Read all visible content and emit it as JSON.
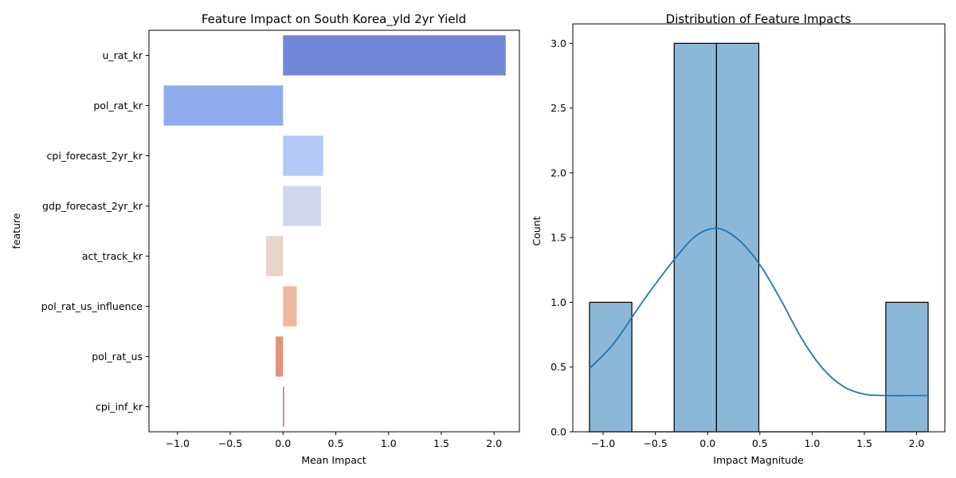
{
  "chart_data": [
    {
      "type": "bar",
      "orientation": "horizontal",
      "title": "Feature Impact on South Korea_yld 2yr Yield",
      "xlabel": "Mean Impact",
      "ylabel": "feature",
      "xlim": [
        -1.27,
        2.24
      ],
      "xticks": [
        -1.0,
        -0.5,
        0.0,
        0.5,
        1.0,
        1.5,
        2.0
      ],
      "xtick_labels": [
        "−1.0",
        "−0.5",
        "0.0",
        "0.5",
        "1.0",
        "1.5",
        "2.0"
      ],
      "categories": [
        "u_rat_kr",
        "pol_rat_kr",
        "cpi_forecast_2yr_kr",
        "gdp_forecast_2yr_kr",
        "act_track_kr",
        "pol_rat_us_influence",
        "pol_rat_us",
        "cpi_inf_kr"
      ],
      "values": [
        2.11,
        -1.13,
        0.38,
        0.36,
        -0.16,
        0.13,
        -0.07,
        0.01
      ],
      "colors": [
        "#6f86d9",
        "#8fabee",
        "#b4c9f4",
        "#cfd9ea",
        "#e7d4cb",
        "#f0b89e",
        "#e3937a",
        "#c8524f"
      ]
    },
    {
      "type": "histogram",
      "title": "Distribution of Feature Impacts",
      "xlabel": "Impact Magnitude",
      "ylabel": "Count",
      "xlim": [
        -1.29,
        2.27
      ],
      "ylim": [
        0,
        3.15
      ],
      "xticks": [
        -1.0,
        -0.5,
        0.0,
        0.5,
        1.0,
        1.5,
        2.0
      ],
      "xtick_labels": [
        "−1.0",
        "−0.5",
        "0.0",
        "0.5",
        "1.0",
        "1.5",
        "2.0"
      ],
      "yticks": [
        0.0,
        0.5,
        1.0,
        1.5,
        2.0,
        2.5,
        3.0
      ],
      "ytick_labels": [
        "0.0",
        "0.5",
        "1.0",
        "1.5",
        "2.0",
        "2.5",
        "3.0"
      ],
      "bin_edges": [
        -1.13,
        -0.725,
        -0.32,
        0.085,
        0.49,
        0.895,
        1.3,
        1.705,
        2.11
      ],
      "counts": [
        1,
        0,
        3,
        3,
        0,
        0,
        0,
        1
      ],
      "bar_color": "#8bb8d9",
      "kde": {
        "color": "#1f77b4",
        "x": [
          -1.13,
          -0.9,
          -0.6,
          -0.3,
          -0.1,
          0.1,
          0.3,
          0.5,
          0.7,
          0.9,
          1.1,
          1.3,
          1.5,
          1.7,
          1.9,
          2.11
        ],
        "y": [
          0.49,
          0.68,
          1.03,
          1.35,
          1.52,
          1.57,
          1.48,
          1.29,
          1.02,
          0.72,
          0.49,
          0.35,
          0.29,
          0.28,
          0.28,
          0.28
        ]
      }
    }
  ]
}
